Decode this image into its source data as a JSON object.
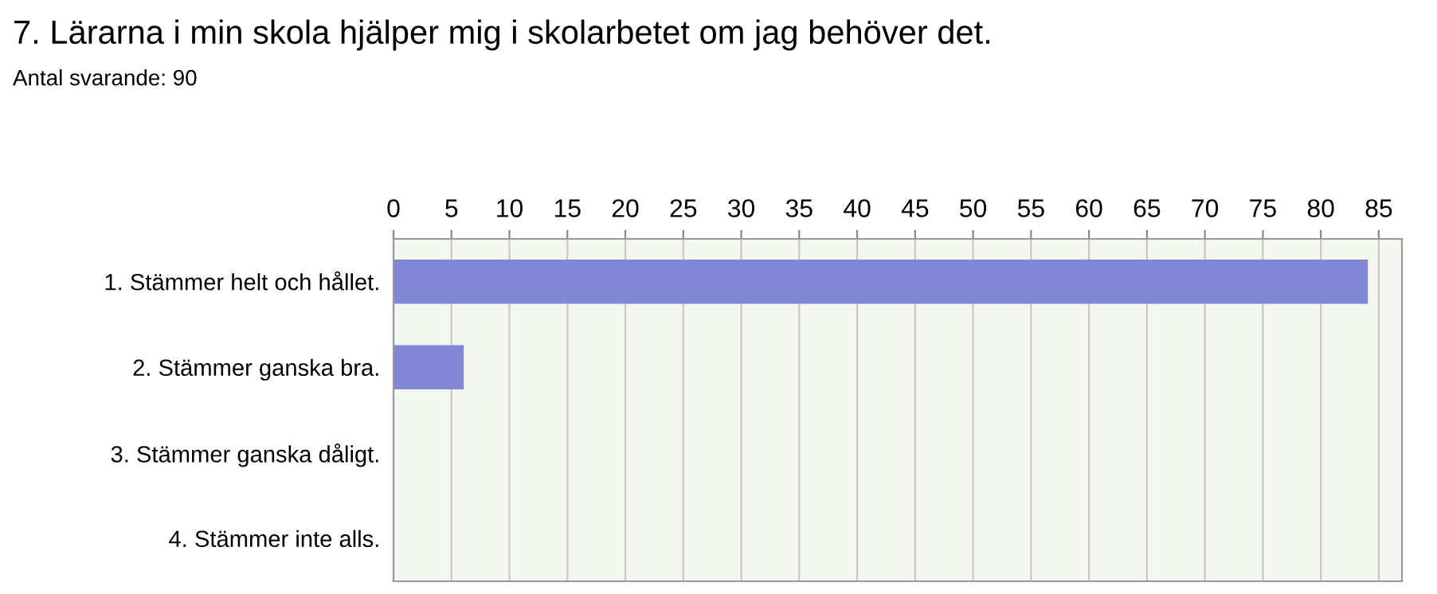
{
  "chart_data": {
    "type": "bar",
    "orientation": "horizontal",
    "title": "7. Lärarna i min skola hjälper mig i skolarbetet om jag behöver det.",
    "subtitle": "Antal svarande: 90",
    "categories": [
      "1. Stämmer helt och hållet.",
      "2. Stämmer ganska bra.",
      "3. Stämmer ganska dåligt.",
      "4. Stämmer inte alls."
    ],
    "values": [
      84,
      6,
      0,
      0
    ],
    "color": "#7f87d6",
    "xlim": [
      0,
      87
    ],
    "xticks": [
      0,
      5,
      10,
      15,
      20,
      25,
      30,
      35,
      40,
      45,
      50,
      55,
      60,
      65,
      70,
      75,
      80,
      85
    ],
    "grid": "x"
  }
}
